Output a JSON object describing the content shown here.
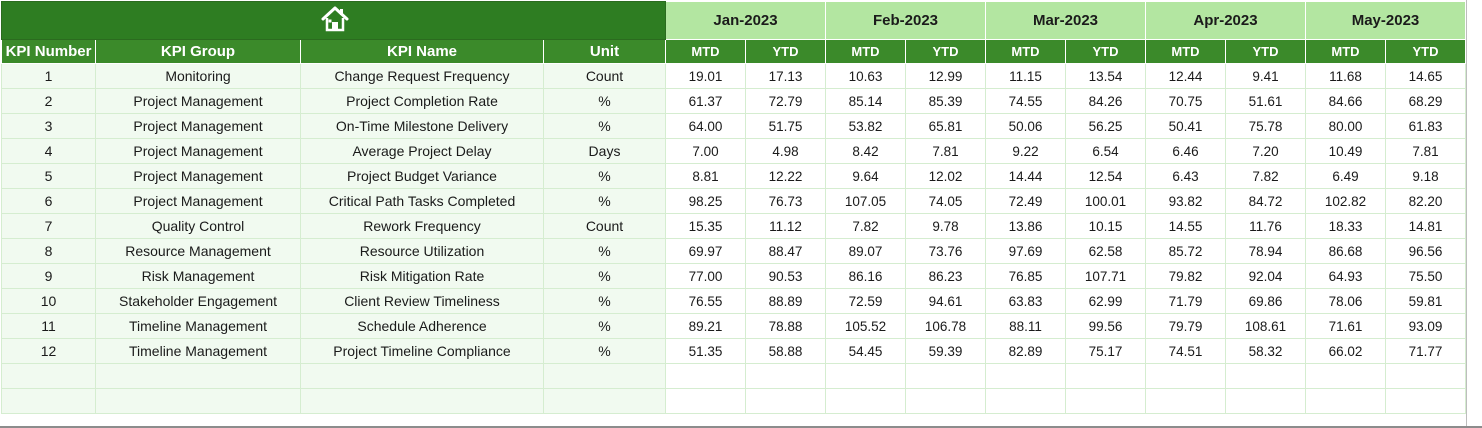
{
  "icons": {
    "home": "home-icon"
  },
  "colors": {
    "banner": "#2e7d22",
    "month_header": "#b3e6a1",
    "column_header": "#3b8a2a",
    "kpi_cell": "#f1faf0",
    "grid_line": "#d5edd0"
  },
  "headers": {
    "kpi_number": "KPI Number",
    "kpi_group": "KPI Group",
    "kpi_name": "KPI Name",
    "unit": "Unit",
    "mtd": "MTD",
    "ytd": "YTD"
  },
  "months": [
    "Jan-2023",
    "Feb-2023",
    "Mar-2023",
    "Apr-2023",
    "May-2023"
  ],
  "rows": [
    {
      "num": "1",
      "group": "Monitoring",
      "name": "Change Request Frequency",
      "unit": "Count",
      "vals": [
        "19.01",
        "17.13",
        "10.63",
        "12.99",
        "11.15",
        "13.54",
        "12.44",
        "9.41",
        "11.68",
        "14.65"
      ]
    },
    {
      "num": "2",
      "group": "Project Management",
      "name": "Project Completion Rate",
      "unit": "%",
      "vals": [
        "61.37",
        "72.79",
        "85.14",
        "85.39",
        "74.55",
        "84.26",
        "70.75",
        "51.61",
        "84.66",
        "68.29"
      ]
    },
    {
      "num": "3",
      "group": "Project Management",
      "name": "On-Time Milestone Delivery",
      "unit": "%",
      "vals": [
        "64.00",
        "51.75",
        "53.82",
        "65.81",
        "50.06",
        "56.25",
        "50.41",
        "75.78",
        "80.00",
        "61.83"
      ]
    },
    {
      "num": "4",
      "group": "Project Management",
      "name": "Average Project Delay",
      "unit": "Days",
      "vals": [
        "7.00",
        "4.98",
        "8.42",
        "7.81",
        "9.22",
        "6.54",
        "6.46",
        "7.20",
        "10.49",
        "7.81"
      ]
    },
    {
      "num": "5",
      "group": "Project Management",
      "name": "Project Budget Variance",
      "unit": "%",
      "vals": [
        "8.81",
        "12.22",
        "9.64",
        "12.02",
        "14.44",
        "12.54",
        "6.43",
        "7.82",
        "6.49",
        "9.18"
      ]
    },
    {
      "num": "6",
      "group": "Project Management",
      "name": "Critical Path Tasks Completed",
      "unit": "%",
      "vals": [
        "98.25",
        "76.73",
        "107.05",
        "74.05",
        "72.49",
        "100.01",
        "93.82",
        "84.72",
        "102.82",
        "82.20"
      ]
    },
    {
      "num": "7",
      "group": "Quality Control",
      "name": "Rework Frequency",
      "unit": "Count",
      "vals": [
        "15.35",
        "11.12",
        "7.82",
        "9.78",
        "13.86",
        "10.15",
        "14.55",
        "11.76",
        "18.33",
        "14.81"
      ]
    },
    {
      "num": "8",
      "group": "Resource Management",
      "name": "Resource Utilization",
      "unit": "%",
      "vals": [
        "69.97",
        "88.47",
        "89.07",
        "73.76",
        "97.69",
        "62.58",
        "85.72",
        "78.94",
        "86.68",
        "96.56"
      ]
    },
    {
      "num": "9",
      "group": "Risk Management",
      "name": "Risk Mitigation Rate",
      "unit": "%",
      "vals": [
        "77.00",
        "90.53",
        "86.16",
        "86.23",
        "76.85",
        "107.71",
        "79.82",
        "92.04",
        "64.93",
        "75.50"
      ]
    },
    {
      "num": "10",
      "group": "Stakeholder Engagement",
      "name": "Client Review Timeliness",
      "unit": "%",
      "vals": [
        "76.55",
        "88.89",
        "72.59",
        "94.61",
        "63.83",
        "62.99",
        "71.79",
        "69.86",
        "78.06",
        "59.81"
      ]
    },
    {
      "num": "11",
      "group": "Timeline Management",
      "name": "Schedule Adherence",
      "unit": "%",
      "vals": [
        "89.21",
        "78.88",
        "105.52",
        "106.78",
        "88.11",
        "99.56",
        "79.79",
        "108.61",
        "71.61",
        "93.09"
      ]
    },
    {
      "num": "12",
      "group": "Timeline Management",
      "name": "Project Timeline Compliance",
      "unit": "%",
      "vals": [
        "51.35",
        "58.88",
        "54.45",
        "59.39",
        "82.89",
        "75.17",
        "74.51",
        "58.32",
        "66.02",
        "71.77"
      ]
    }
  ]
}
